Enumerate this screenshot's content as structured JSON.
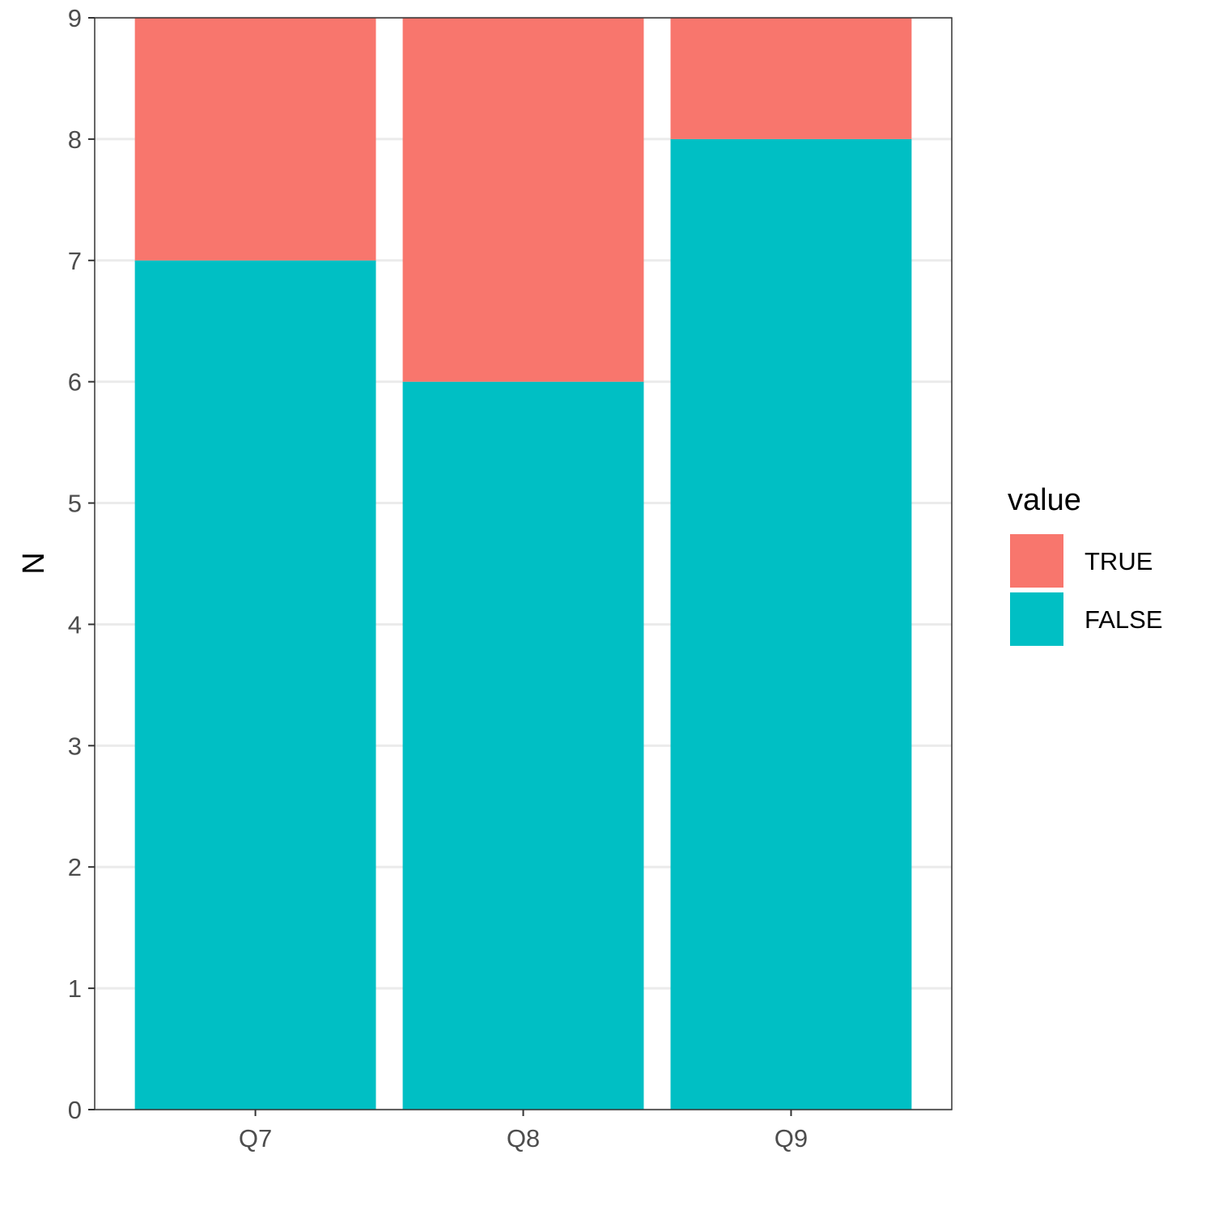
{
  "chart_data": {
    "type": "bar",
    "stacked": true,
    "categories": [
      "Q7",
      "Q8",
      "Q9"
    ],
    "series": [
      {
        "name": "TRUE",
        "values": [
          2,
          3,
          1
        ],
        "color": "#F8766D"
      },
      {
        "name": "FALSE",
        "values": [
          7,
          6,
          8
        ],
        "color": "#00BFC4"
      }
    ],
    "xlabel": "",
    "ylabel": "N",
    "ylim": [
      0,
      9
    ],
    "yticks": [
      0,
      1,
      2,
      3,
      4,
      5,
      6,
      7,
      8,
      9
    ],
    "grid": true,
    "legend": {
      "title": "value",
      "position": "right",
      "entries": [
        "TRUE",
        "FALSE"
      ]
    },
    "colors": {
      "panel_border": "#333333",
      "grid": "#ebebeb",
      "background": "#ffffff"
    }
  }
}
